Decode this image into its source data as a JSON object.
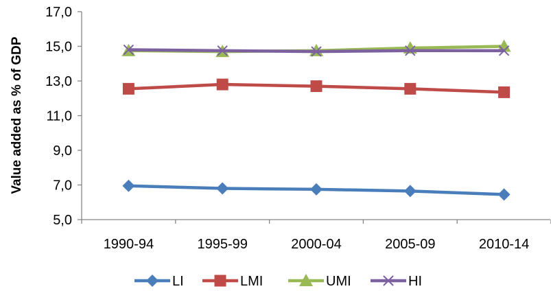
{
  "chart_data": {
    "type": "line",
    "title": "",
    "xlabel": "",
    "ylabel": "Value added as % of GDP",
    "categories": [
      "1990-94",
      "1995-99",
      "2000-04",
      "2005-09",
      "2010-14"
    ],
    "ylim": [
      5.0,
      17.0
    ],
    "yticks": [
      "5,0",
      "7,0",
      "9,0",
      "11,0",
      "13,0",
      "15,0",
      "17,0"
    ],
    "grid": false,
    "legend_position": "bottom",
    "series": [
      {
        "name": "LI",
        "color": "#4A7EBB",
        "marker": "diamond",
        "values": [
          6.95,
          6.8,
          6.75,
          6.65,
          6.45
        ]
      },
      {
        "name": "LMI",
        "color": "#BE4B48",
        "marker": "square",
        "values": [
          12.55,
          12.8,
          12.7,
          12.55,
          12.35
        ]
      },
      {
        "name": "UMI",
        "color": "#98B954",
        "marker": "triangle",
        "values": [
          14.75,
          14.7,
          14.75,
          14.9,
          15.0
        ]
      },
      {
        "name": "HI",
        "color": "#7D60A0",
        "marker": "x",
        "values": [
          14.8,
          14.75,
          14.7,
          14.75,
          14.75
        ]
      }
    ]
  }
}
